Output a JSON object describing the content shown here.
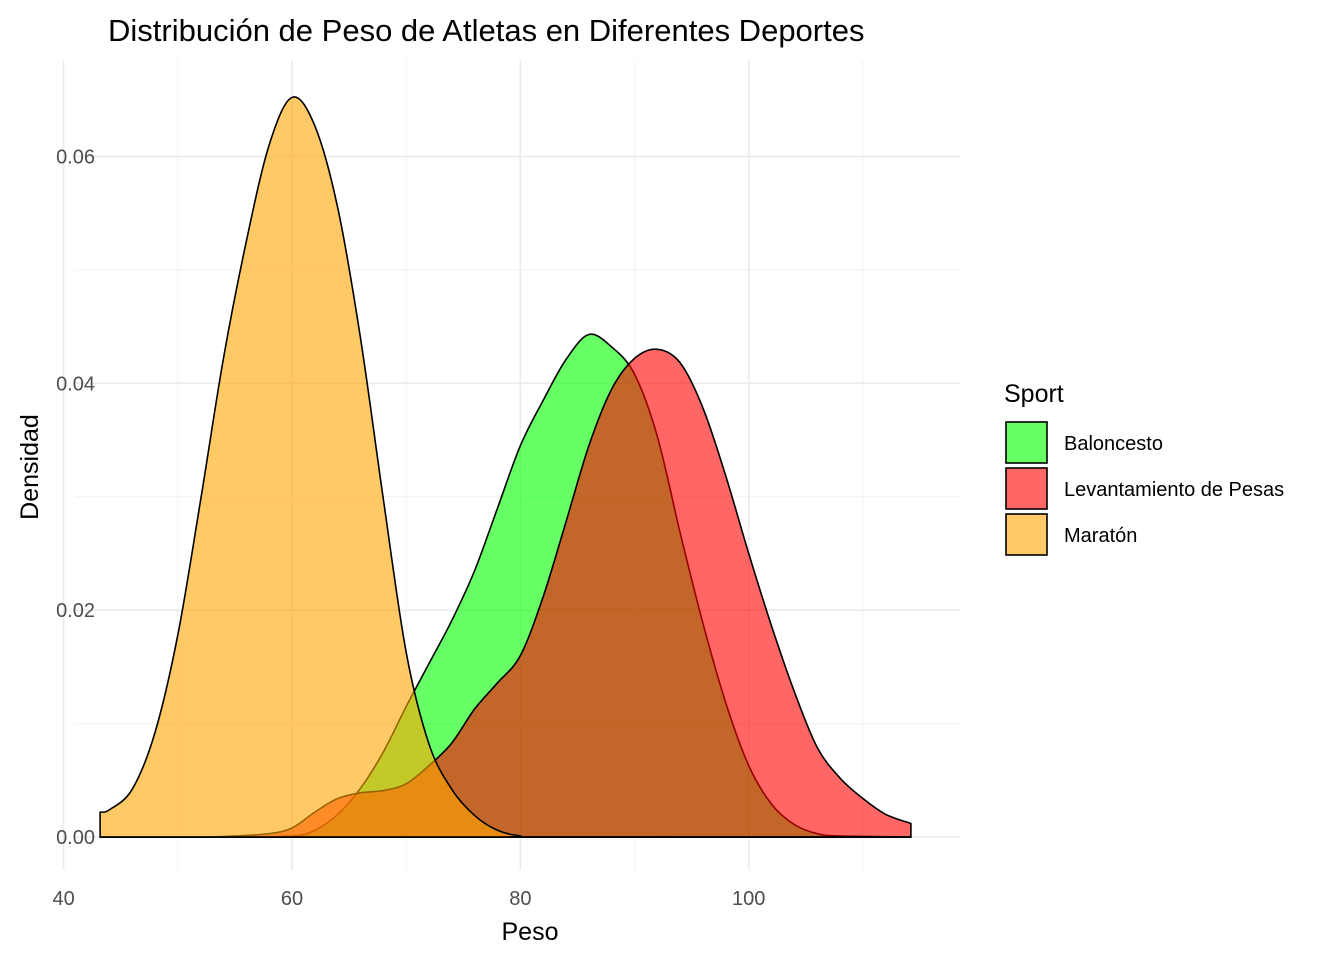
{
  "chart_data": {
    "type": "area",
    "title": "Distribución de Peso de Atletas en Diferentes Deportes",
    "xlabel": "Peso",
    "ylabel": "Densidad",
    "xlim": [
      41.0,
      118.5
    ],
    "ylim": [
      -0.0029,
      0.0685
    ],
    "x_ticks": [
      40,
      60,
      80,
      100
    ],
    "x_tick_labels": [
      "40",
      "60",
      "80",
      "100"
    ],
    "y_ticks": [
      0.0,
      0.02,
      0.04,
      0.06
    ],
    "y_tick_labels": [
      "0.00",
      "0.02",
      "0.04",
      "0.06"
    ],
    "grid": true,
    "legend": {
      "title": "Sport",
      "position": "right",
      "entries": [
        "Baloncesto",
        "Levantamiento de Pesas",
        "Maratón"
      ]
    },
    "series": [
      {
        "name": "Baloncesto",
        "color": "#00FF00",
        "points": [
          [
            43.2,
            0.0
          ],
          [
            55,
            0.0
          ],
          [
            60,
            0.0001
          ],
          [
            62,
            0.0006
          ],
          [
            64,
            0.002
          ],
          [
            66,
            0.0043
          ],
          [
            68,
            0.0075
          ],
          [
            70,
            0.0115
          ],
          [
            72,
            0.0153
          ],
          [
            74,
            0.0191
          ],
          [
            76,
            0.0235
          ],
          [
            78,
            0.029
          ],
          [
            80,
            0.0345
          ],
          [
            82,
            0.0385
          ],
          [
            84,
            0.0421
          ],
          [
            86,
            0.0443
          ],
          [
            88,
            0.0432
          ],
          [
            90,
            0.0408
          ],
          [
            92,
            0.0353
          ],
          [
            94,
            0.0268
          ],
          [
            96,
            0.0188
          ],
          [
            98,
            0.0118
          ],
          [
            100,
            0.0063
          ],
          [
            102,
            0.0029
          ],
          [
            104,
            0.0011
          ],
          [
            106,
            0.0003
          ],
          [
            108,
            0.0001
          ],
          [
            114.2,
            0.0
          ]
        ]
      },
      {
        "name": "Levantamiento de Pesas",
        "color": "#FF0000",
        "points": [
          [
            43.2,
            0.0
          ],
          [
            52,
            0.0
          ],
          [
            55,
            0.0001
          ],
          [
            58,
            0.0003
          ],
          [
            60,
            0.0008
          ],
          [
            62,
            0.0022
          ],
          [
            64,
            0.0034
          ],
          [
            66,
            0.0039
          ],
          [
            68,
            0.0041
          ],
          [
            70,
            0.0047
          ],
          [
            72,
            0.0063
          ],
          [
            74,
            0.0083
          ],
          [
            76,
            0.0113
          ],
          [
            78,
            0.0136
          ],
          [
            80,
            0.016
          ],
          [
            82,
            0.0212
          ],
          [
            84,
            0.0278
          ],
          [
            86,
            0.0345
          ],
          [
            88,
            0.0395
          ],
          [
            90,
            0.0422
          ],
          [
            92,
            0.043
          ],
          [
            94,
            0.0418
          ],
          [
            96,
            0.0378
          ],
          [
            98,
            0.0318
          ],
          [
            100,
            0.025
          ],
          [
            102,
            0.0186
          ],
          [
            104,
            0.0128
          ],
          [
            106,
            0.0079
          ],
          [
            108,
            0.0052
          ],
          [
            110,
            0.0034
          ],
          [
            112,
            0.002
          ],
          [
            114.2,
            0.0012
          ]
        ]
      },
      {
        "name": "Maratón",
        "color": "#FFA500",
        "points": [
          [
            43.2,
            0.0022
          ],
          [
            44,
            0.0024
          ],
          [
            46,
            0.0042
          ],
          [
            48,
            0.0092
          ],
          [
            50,
            0.0178
          ],
          [
            52,
            0.0297
          ],
          [
            54,
            0.0422
          ],
          [
            56,
            0.0525
          ],
          [
            58,
            0.061
          ],
          [
            60,
            0.0652
          ],
          [
            62,
            0.0627
          ],
          [
            64,
            0.0555
          ],
          [
            66,
            0.044
          ],
          [
            68,
            0.0298
          ],
          [
            70,
            0.0163
          ],
          [
            72,
            0.0082
          ],
          [
            74,
            0.0042
          ],
          [
            76,
            0.0019
          ],
          [
            78,
            0.0006
          ],
          [
            80,
            0.0001
          ],
          [
            82,
            0.0
          ],
          [
            114.2,
            0.0
          ]
        ]
      }
    ]
  }
}
